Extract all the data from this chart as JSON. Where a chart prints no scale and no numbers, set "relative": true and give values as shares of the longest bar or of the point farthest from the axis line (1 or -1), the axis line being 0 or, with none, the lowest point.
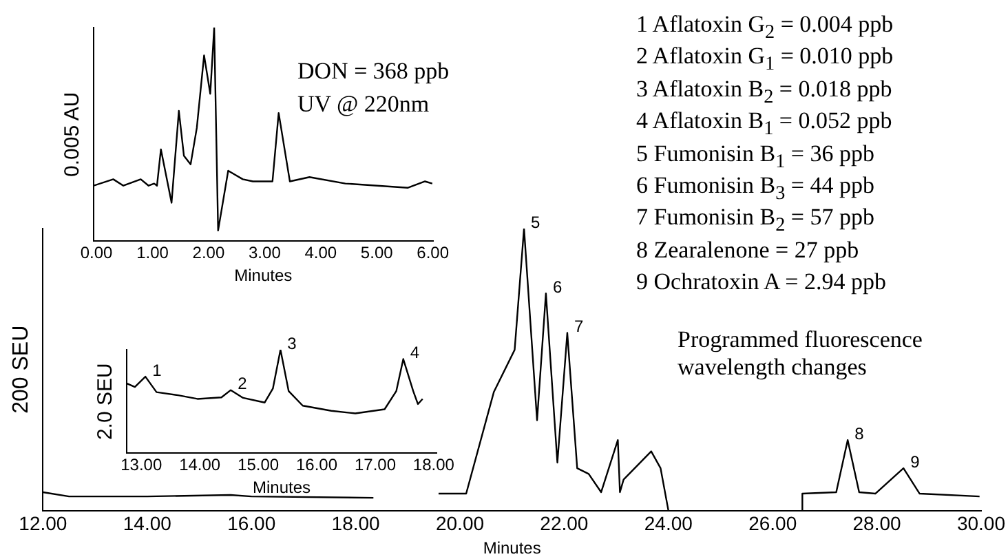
{
  "chart_data": [
    {
      "type": "line",
      "relative": true,
      "xlabel": "Minutes",
      "ylabel": "200 SEU",
      "marker": "none",
      "line_style": "solid",
      "xlim": [
        12,
        30
      ],
      "xticks": [
        {
          "value": 12,
          "label": "12.00"
        },
        {
          "value": 14,
          "label": "14.00"
        },
        {
          "value": 16,
          "label": "16.00"
        },
        {
          "value": 18,
          "label": "18.00"
        },
        {
          "value": 20,
          "label": "20.00"
        },
        {
          "value": 22,
          "label": "22.00"
        },
        {
          "value": 24,
          "label": "24.00"
        },
        {
          "value": 26,
          "label": "26.00"
        },
        {
          "value": 28,
          "label": "28.00"
        },
        {
          "value": 30,
          "label": "30.00"
        }
      ],
      "series": [
        {
          "color": "#000000",
          "x": [
            12.0,
            12.5,
            14.0,
            15.6,
            16.0,
            18.34,
            18.9,
            19.59,
            20.12,
            20.65,
            21.05,
            21.23,
            21.48,
            21.65,
            21.87,
            22.06,
            22.25,
            22.47,
            22.71,
            23.03,
            23.07,
            23.14,
            23.67,
            23.85,
            24.0,
            25.3,
            26.56,
            26.57,
            27.22,
            27.44,
            27.66,
            27.97,
            28.51,
            28.82,
            29.97
          ],
          "values": [
            0.065,
            0.05,
            0.05,
            0.055,
            0.05,
            0.045,
            null,
            0.06,
            0.06,
            0.42,
            0.57,
            1.0,
            0.32,
            0.77,
            0.17,
            0.63,
            0.15,
            0.13,
            0.065,
            0.25,
            0.065,
            0.11,
            0.21,
            0.15,
            0,
            null,
            0,
            0.06,
            0.065,
            0.25,
            0.065,
            0.06,
            0.15,
            0.06,
            0.05
          ]
        }
      ],
      "annotations": [
        {
          "text": "5",
          "x": 21.23,
          "y": 1.0
        },
        {
          "text": "6",
          "x": 21.65,
          "y": 0.77
        },
        {
          "text": "7",
          "x": 22.06,
          "y": 0.63
        },
        {
          "text": "8",
          "x": 27.44,
          "y": 0.25
        },
        {
          "text": "9",
          "x": 28.51,
          "y": 0.15
        },
        "1 Aflatoxin G$_{2}$ = 0.004 ppb",
        "2 Aflatoxin G$_{1}$ = 0.010 ppb",
        "3 Aflatoxin B$_{2}$ = 0.018 ppb",
        "4 Aflatoxin B$_{1}$ = 0.052 ppb",
        "5 Fumonisin B$_{1}$ = 36 ppb",
        "6 Fumonisin B$_{3}$ = 44 ppb",
        "7 Fumonisin B$_{2}$ = 57 ppb",
        "8 Zearalenone = 27 ppb",
        "9 Ochratoxin A = 2.94 ppb",
        "Programmed fluorescence wavelength changes"
      ]
    },
    {
      "type": "line",
      "relative": true,
      "xlabel": "Minutes",
      "ylabel": "0.005 AU",
      "marker": "none",
      "line_style": "solid",
      "xlim": [
        -0.05,
        6
      ],
      "xticks": [
        {
          "value": 0,
          "label": "0.00"
        },
        {
          "value": 1,
          "label": "1.00"
        },
        {
          "value": 2,
          "label": "2.00"
        },
        {
          "value": 3,
          "label": "3.00"
        },
        {
          "value": 4,
          "label": "4.00"
        },
        {
          "value": 5,
          "label": "5.00"
        },
        {
          "value": 6,
          "label": "6.00"
        }
      ],
      "series": [
        {
          "color": "#000000",
          "x": [
            -0.05,
            0.3,
            0.48,
            0.79,
            0.93,
            1.03,
            1.08,
            1.15,
            1.34,
            1.47,
            1.56,
            1.68,
            1.79,
            1.92,
            2.03,
            2.1,
            2.17,
            2.35,
            2.61,
            2.79,
            3.14,
            3.25,
            3.45,
            3.8,
            4.44,
            5.55,
            5.86,
            5.99
          ],
          "values": [
            0.26,
            0.29,
            0.26,
            0.29,
            0.26,
            0.27,
            0.26,
            0.43,
            0.18,
            0.61,
            0.4,
            0.36,
            0.53,
            0.87,
            0.69,
            1.0,
            0.05,
            0.33,
            0.29,
            0.28,
            0.28,
            0.6,
            0.28,
            0.3,
            0.27,
            0.25,
            0.28,
            0.27
          ]
        }
      ],
      "annotations": [
        "DON = 368 ppb",
        "UV @ 220nm"
      ]
    },
    {
      "type": "line",
      "relative": true,
      "xlabel": "Minutes",
      "ylabel": "2.0 SEU",
      "marker": "none",
      "line_style": "solid",
      "xlim": [
        12.75,
        18.05
      ],
      "xticks": [
        {
          "value": 13,
          "label": "13.00"
        },
        {
          "value": 14,
          "label": "14.00"
        },
        {
          "value": 15,
          "label": "15.00"
        },
        {
          "value": 16,
          "label": "16.00"
        },
        {
          "value": 17,
          "label": "17.00"
        },
        {
          "value": 18,
          "label": "18.00"
        }
      ],
      "series": [
        {
          "color": "#000000",
          "x": [
            12.75,
            12.89,
            13.07,
            13.26,
            13.63,
            13.96,
            14.37,
            14.53,
            14.74,
            15.11,
            15.25,
            15.38,
            15.52,
            15.76,
            16.25,
            16.66,
            17.16,
            17.36,
            17.48,
            17.65,
            17.73,
            17.81
          ],
          "values": [
            0.675,
            0.64,
            0.74,
            0.59,
            0.56,
            0.525,
            0.54,
            0.61,
            0.535,
            0.49,
            0.625,
            1.0,
            0.6,
            0.46,
            0.41,
            0.385,
            0.425,
            0.6,
            0.91,
            0.6,
            0.475,
            0.525
          ]
        }
      ],
      "annotations": [
        {
          "text": "1",
          "x": 13.07,
          "y": 0.74
        },
        {
          "text": "2",
          "x": 14.53,
          "y": 0.61
        },
        {
          "text": "3",
          "x": 15.38,
          "y": 1.0
        },
        {
          "text": "4",
          "x": 17.48,
          "y": 0.91
        }
      ]
    }
  ]
}
